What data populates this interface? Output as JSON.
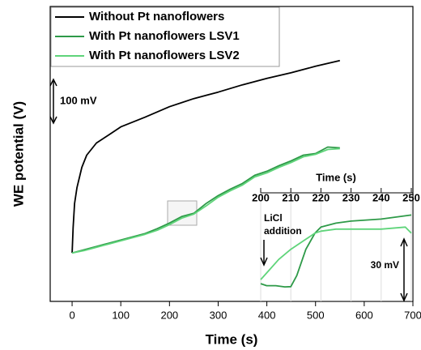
{
  "chart_data": [
    {
      "type": "line",
      "xlabel": "Time (s)",
      "ylabel": "WE potential (V)",
      "xlim": [
        -45,
        700
      ],
      "xticks": [
        0,
        100,
        200,
        300,
        400,
        500,
        600,
        700
      ],
      "ylim": [
        -120,
        610
      ],
      "legend": "upper left",
      "annotations": [
        "100 mV"
      ],
      "series": [
        {
          "name": "Without Pt nanoflowers",
          "color": "#000000",
          "x": [
            0,
            2,
            5,
            10,
            20,
            30,
            50,
            75,
            100,
            150,
            200,
            250,
            300,
            350,
            400,
            450,
            500,
            550
          ],
          "values": [
            0,
            62,
            122,
            162,
            212,
            242,
            272,
            292,
            312,
            336,
            362,
            382,
            398,
            416,
            432,
            446,
            462,
            476
          ]
        },
        {
          "name": "With Pt nanoflowers LSV1",
          "color": "#2e9a48",
          "x": [
            0,
            25,
            50,
            75,
            100,
            125,
            150,
            175,
            200,
            225,
            250,
            275,
            300,
            325,
            350,
            375,
            400,
            425,
            450,
            475,
            500,
            525,
            550
          ],
          "values": [
            0,
            8,
            16,
            24,
            32,
            40,
            48,
            60,
            74,
            90,
            98,
            122,
            142,
            158,
            172,
            192,
            202,
            216,
            228,
            242,
            246,
            262,
            260
          ]
        },
        {
          "name": "With Pt nanoflowers LSV2",
          "color": "#5fd47a",
          "x": [
            0,
            25,
            50,
            75,
            100,
            125,
            150,
            175,
            200,
            225,
            250,
            275,
            300,
            325,
            350,
            375,
            400,
            425,
            450,
            475,
            500,
            525,
            550
          ],
          "values": [
            0,
            6,
            14,
            22,
            30,
            38,
            46,
            56,
            70,
            86,
            96,
            116,
            138,
            154,
            168,
            188,
            198,
            212,
            224,
            238,
            244,
            256,
            258
          ]
        }
      ]
    },
    {
      "type": "line",
      "xlabel": "Time (s)",
      "xlim": [
        200,
        250
      ],
      "xticks": [
        200,
        210,
        220,
        230,
        240,
        250
      ],
      "ylim": [
        0,
        53
      ],
      "grid": true,
      "annotations": [
        "LiCl",
        "addition",
        "30 mV"
      ],
      "series": [
        {
          "color": "#2e9a48",
          "x": [
            200,
            202,
            205,
            208,
            210,
            212,
            215,
            218,
            220,
            225,
            230,
            240,
            250
          ],
          "values": [
            8,
            7,
            7,
            6.4,
            6.5,
            12,
            25,
            33,
            36,
            38,
            39,
            40,
            42
          ]
        },
        {
          "color": "#5fd47a",
          "x": [
            200,
            203,
            206,
            210,
            215,
            218,
            220,
            225,
            230,
            240,
            248,
            250
          ],
          "values": [
            10,
            15,
            20,
            25,
            30,
            33,
            34,
            35,
            35,
            35,
            36,
            33
          ]
        }
      ]
    }
  ]
}
